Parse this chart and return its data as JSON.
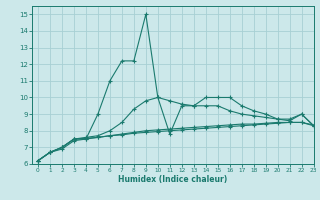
{
  "bg_color": "#cce8ea",
  "grid_color": "#a8d0d4",
  "line_color": "#1a7a6e",
  "xlabel": "Humidex (Indice chaleur)",
  "xlim": [
    -0.5,
    23
  ],
  "ylim": [
    6,
    15.5
  ],
  "yticks": [
    6,
    7,
    8,
    9,
    10,
    11,
    12,
    13,
    14,
    15
  ],
  "xticks": [
    0,
    1,
    2,
    3,
    4,
    5,
    6,
    7,
    8,
    9,
    10,
    11,
    12,
    13,
    14,
    15,
    16,
    17,
    18,
    19,
    20,
    21,
    22,
    23
  ],
  "line1_x": [
    0,
    1,
    2,
    3,
    4,
    5,
    6,
    7,
    8,
    9,
    10,
    11,
    12,
    13,
    14,
    15,
    16,
    17,
    18,
    19,
    20,
    21,
    22,
    23
  ],
  "line1_y": [
    6.2,
    6.7,
    6.9,
    7.4,
    7.5,
    7.6,
    7.7,
    7.75,
    7.85,
    7.9,
    7.95,
    8.0,
    8.05,
    8.1,
    8.15,
    8.2,
    8.25,
    8.3,
    8.35,
    8.4,
    8.45,
    8.5,
    8.5,
    8.35
  ],
  "line2_x": [
    0,
    1,
    2,
    3,
    4,
    5,
    6,
    7,
    8,
    9,
    10,
    11,
    12,
    13,
    14,
    15,
    16,
    17,
    18,
    19,
    20,
    21,
    22,
    23
  ],
  "line2_y": [
    6.2,
    6.7,
    7.0,
    7.5,
    7.55,
    7.6,
    7.7,
    7.8,
    7.9,
    8.0,
    8.05,
    8.1,
    8.15,
    8.2,
    8.25,
    8.3,
    8.35,
    8.4,
    8.4,
    8.45,
    8.5,
    8.5,
    8.5,
    8.3
  ],
  "line3_x": [
    0,
    1,
    2,
    3,
    4,
    5,
    6,
    7,
    8,
    9,
    10,
    11,
    12,
    13,
    14,
    15,
    16,
    17,
    18,
    19,
    20,
    21,
    22,
    23
  ],
  "line3_y": [
    6.2,
    6.7,
    7.0,
    7.5,
    7.6,
    7.7,
    8.0,
    8.5,
    9.3,
    9.8,
    10.0,
    9.8,
    9.6,
    9.5,
    9.5,
    9.5,
    9.2,
    9.0,
    8.9,
    8.8,
    8.7,
    8.7,
    9.0,
    8.3
  ],
  "line4_x": [
    0,
    1,
    2,
    3,
    4,
    5,
    6,
    7,
    8,
    9,
    10,
    11,
    12,
    13,
    14,
    15,
    16,
    17,
    18,
    19,
    20,
    21,
    22,
    23
  ],
  "line4_y": [
    6.2,
    6.7,
    7.0,
    7.5,
    7.5,
    9.0,
    11.0,
    12.2,
    12.2,
    15.0,
    10.0,
    7.8,
    9.5,
    9.5,
    10.0,
    10.0,
    10.0,
    9.5,
    9.2,
    9.0,
    8.7,
    8.6,
    9.0,
    8.3
  ],
  "marker": "+",
  "markersize": 3,
  "linewidth": 0.8
}
